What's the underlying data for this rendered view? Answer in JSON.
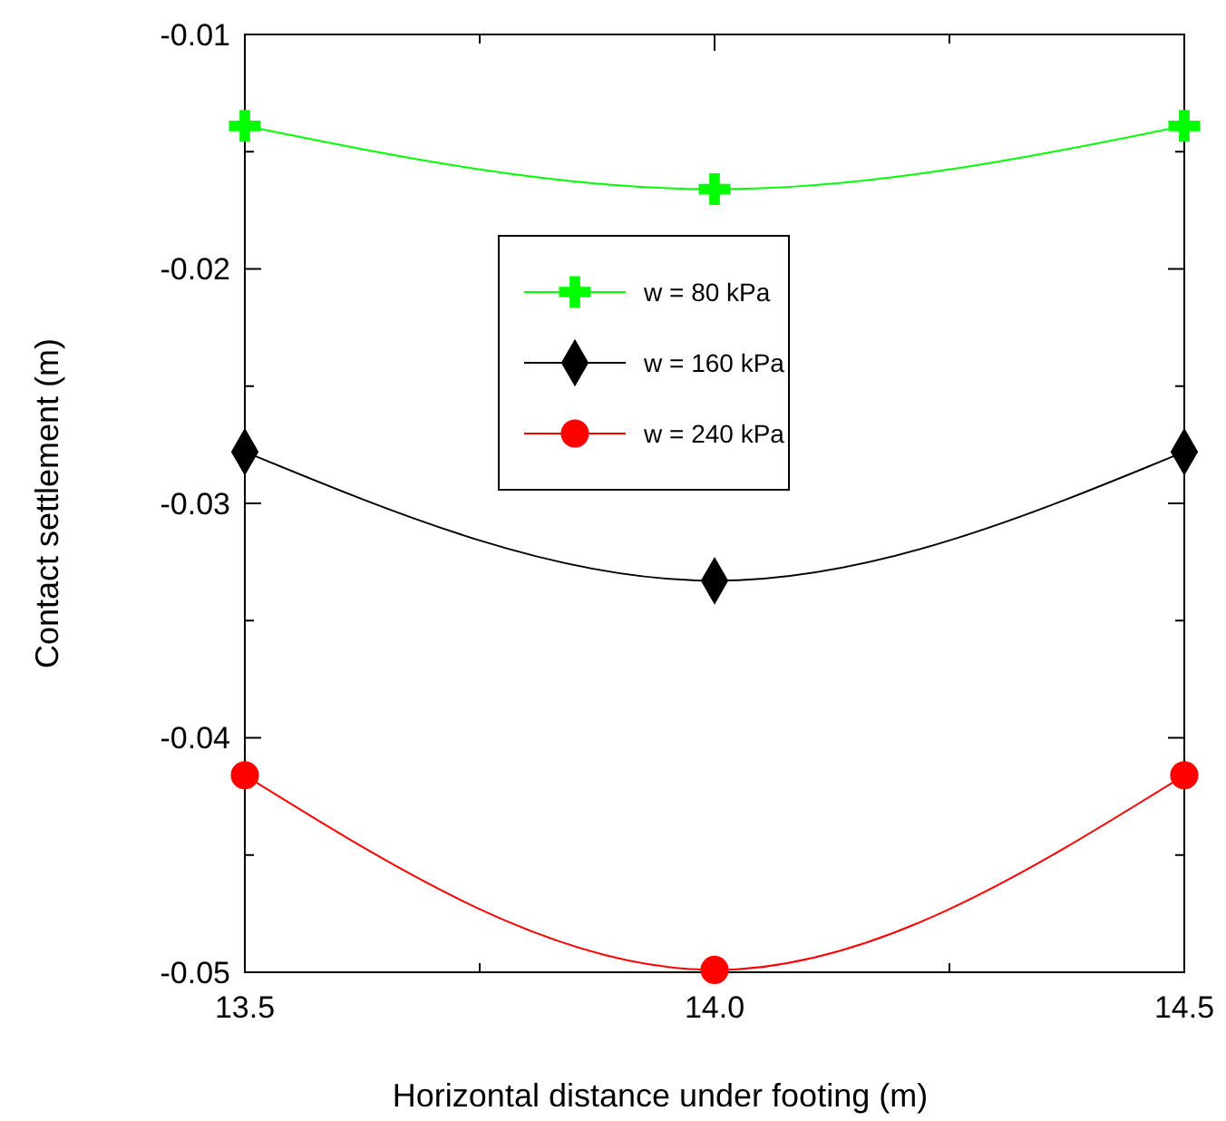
{
  "chart_data": {
    "type": "line",
    "xlabel": "Horizontal distance under footing (m)",
    "ylabel": "Contact settlement (m)",
    "x": [
      13.5,
      14.0,
      14.5
    ],
    "xlim": [
      13.5,
      14.5
    ],
    "xticks": [
      {
        "value": 13.5,
        "label": "13.5"
      },
      {
        "value": 13.75,
        "label": null
      },
      {
        "value": 14.0,
        "label": "14.0"
      },
      {
        "value": 14.25,
        "label": null
      },
      {
        "value": 14.5,
        "label": "14.5"
      }
    ],
    "ylim": [
      -0.05,
      -0.01
    ],
    "yticks": [
      -0.05,
      {
        "value": -0.045,
        "label": null
      },
      -0.04,
      {
        "value": -0.035,
        "label": null
      },
      -0.03,
      {
        "value": -0.025,
        "label": null
      },
      -0.02,
      {
        "value": -0.015,
        "label": null
      },
      -0.01
    ],
    "grid": false,
    "legend": "top",
    "line_style": "solid",
    "series": [
      {
        "name": "w = 80 kPa",
        "color": "#00ff00",
        "marker": "cross",
        "values": [
          -0.0139,
          -0.0166,
          -0.0139
        ]
      },
      {
        "name": "w = 160 kPa",
        "color": "#000000",
        "marker": "diamond",
        "values": [
          -0.0278,
          -0.0333,
          -0.0278
        ]
      },
      {
        "name": "w = 240 kPa",
        "color": "#ff0000",
        "marker": "circle",
        "values": [
          -0.0416,
          -0.0499,
          -0.0416
        ]
      }
    ]
  }
}
